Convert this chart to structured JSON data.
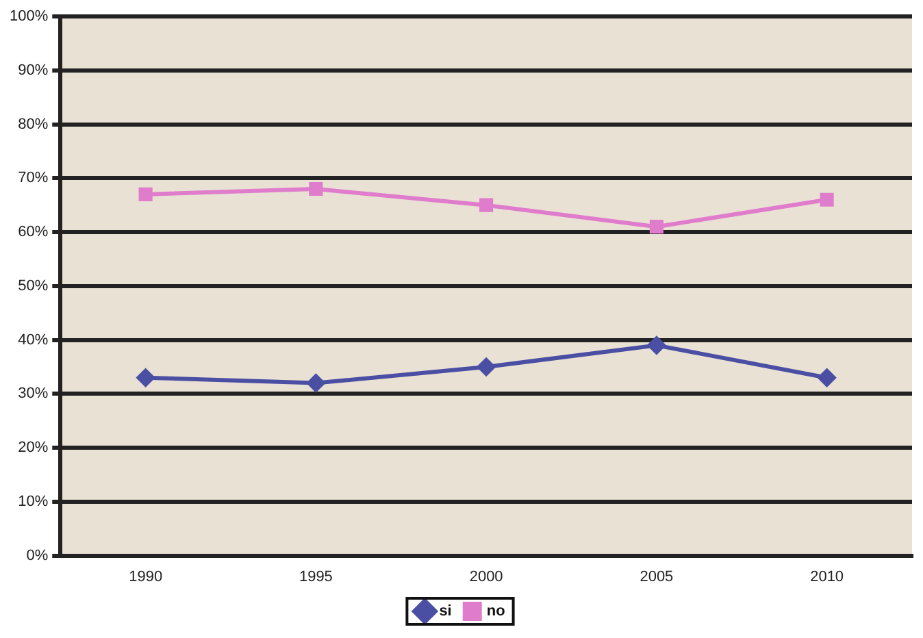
{
  "chart_data": {
    "type": "line",
    "categories": [
      "1990",
      "1995",
      "2000",
      "2005",
      "2010"
    ],
    "series": [
      {
        "name": "si",
        "color": "#4b4fa3",
        "marker": "diamond",
        "values": [
          33,
          32,
          35,
          39,
          33
        ]
      },
      {
        "name": "no",
        "color": "#e07ccc",
        "marker": "square",
        "values": [
          67,
          68,
          65,
          61,
          66
        ]
      }
    ],
    "ylim": [
      0,
      100
    ],
    "yticks": [
      {
        "value": 0,
        "label": "0%"
      },
      {
        "value": 10,
        "label": "10%"
      },
      {
        "value": 20,
        "label": "20%"
      },
      {
        "value": 30,
        "label": "30%"
      },
      {
        "value": 40,
        "label": "40%"
      },
      {
        "value": 50,
        "label": "50%"
      },
      {
        "value": 60,
        "label": "60%"
      },
      {
        "value": 70,
        "label": "70%"
      },
      {
        "value": 80,
        "label": "80%"
      },
      {
        "value": 90,
        "label": "90%"
      },
      {
        "value": 100,
        "label": "100%"
      }
    ],
    "grid": "y",
    "legend": "bottom",
    "line_style": "solid"
  }
}
